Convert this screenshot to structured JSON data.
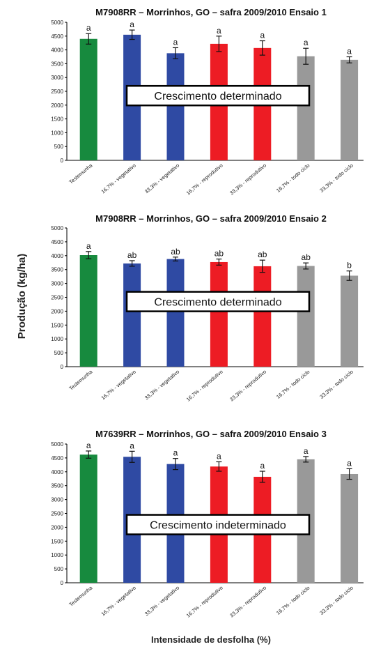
{
  "ylabel": "Produção (kg/ha)",
  "xlabel": "Intensidade de desfolha (%)",
  "colors": {
    "testemunha": "#178a3e",
    "vegetativo": "#2f4aa3",
    "reprodutivo": "#ed1c24",
    "todo_ciclo": "#999999"
  },
  "chart_data": [
    {
      "type": "bar",
      "title": "M7908RR – Morrinhos, GO – safra 2009/2010 Ensaio 1",
      "annotation": "Crescimento determinado",
      "categories": [
        "Testemunha",
        "16,7% - vegetativo",
        "33,3% - vegetativo",
        "16,7% - reprodutivo",
        "33,3% - reprodutivo",
        "16,7% - todo ciclo",
        "33,3% - todo ciclo"
      ],
      "values": [
        4400,
        4550,
        3880,
        4220,
        4070,
        3770,
        3640
      ],
      "errors": [
        190,
        170,
        200,
        280,
        260,
        290,
        110
      ],
      "significance": [
        "a",
        "a",
        "a",
        "a",
        "a",
        "a",
        "a"
      ],
      "ylim": [
        0,
        5000
      ],
      "yticks": [
        "0",
        "500",
        "1000",
        "1500",
        "2000",
        "2500",
        "3000",
        "3500",
        "4000",
        "4500",
        "5000"
      ]
    },
    {
      "type": "bar",
      "title": "M7908RR – Morrinhos, GO – safra 2009/2010 Ensaio 2",
      "annotation": "Crescimento determinado",
      "categories": [
        "Testemunha",
        "16,7% - vegetativo",
        "33,3% - vegetativo",
        "16,7% - reprodutivo",
        "33,3% - reprodutivo",
        "16,7% - todo ciclo",
        "33,3% - todo ciclo"
      ],
      "values": [
        4020,
        3720,
        3880,
        3770,
        3620,
        3630,
        3280
      ],
      "errors": [
        130,
        100,
        70,
        110,
        220,
        110,
        170
      ],
      "significance": [
        "a",
        "ab",
        "ab",
        "ab",
        "ab",
        "ab",
        "b"
      ],
      "ylim": [
        0,
        5000
      ],
      "yticks": [
        "0",
        "500",
        "1000",
        "1500",
        "2000",
        "2500",
        "3000",
        "3500",
        "4000",
        "4500",
        "5000"
      ]
    },
    {
      "type": "bar",
      "title": "M7639RR – Morrinhos, GO – safra 2009/2010 Ensaio 3",
      "annotation": "Crescimento indeterminado",
      "categories": [
        "Testemunha",
        "16,7% - vegetativo",
        "33,3% - vegetativo",
        "16,7% - reprodutivo",
        "33,3% - reprodutivo",
        "16,7% - todo ciclo",
        "33,3% - todo ciclo"
      ],
      "values": [
        4620,
        4540,
        4280,
        4190,
        3820,
        4450,
        3920
      ],
      "errors": [
        130,
        200,
        200,
        170,
        200,
        100,
        190
      ],
      "significance": [
        "a",
        "a",
        "a",
        "a",
        "a",
        "a",
        "a"
      ],
      "ylim": [
        0,
        5000
      ],
      "yticks": [
        "0",
        "500",
        "1000",
        "1500",
        "2000",
        "2500",
        "3000",
        "3500",
        "4000",
        "4500",
        "5000"
      ]
    }
  ]
}
